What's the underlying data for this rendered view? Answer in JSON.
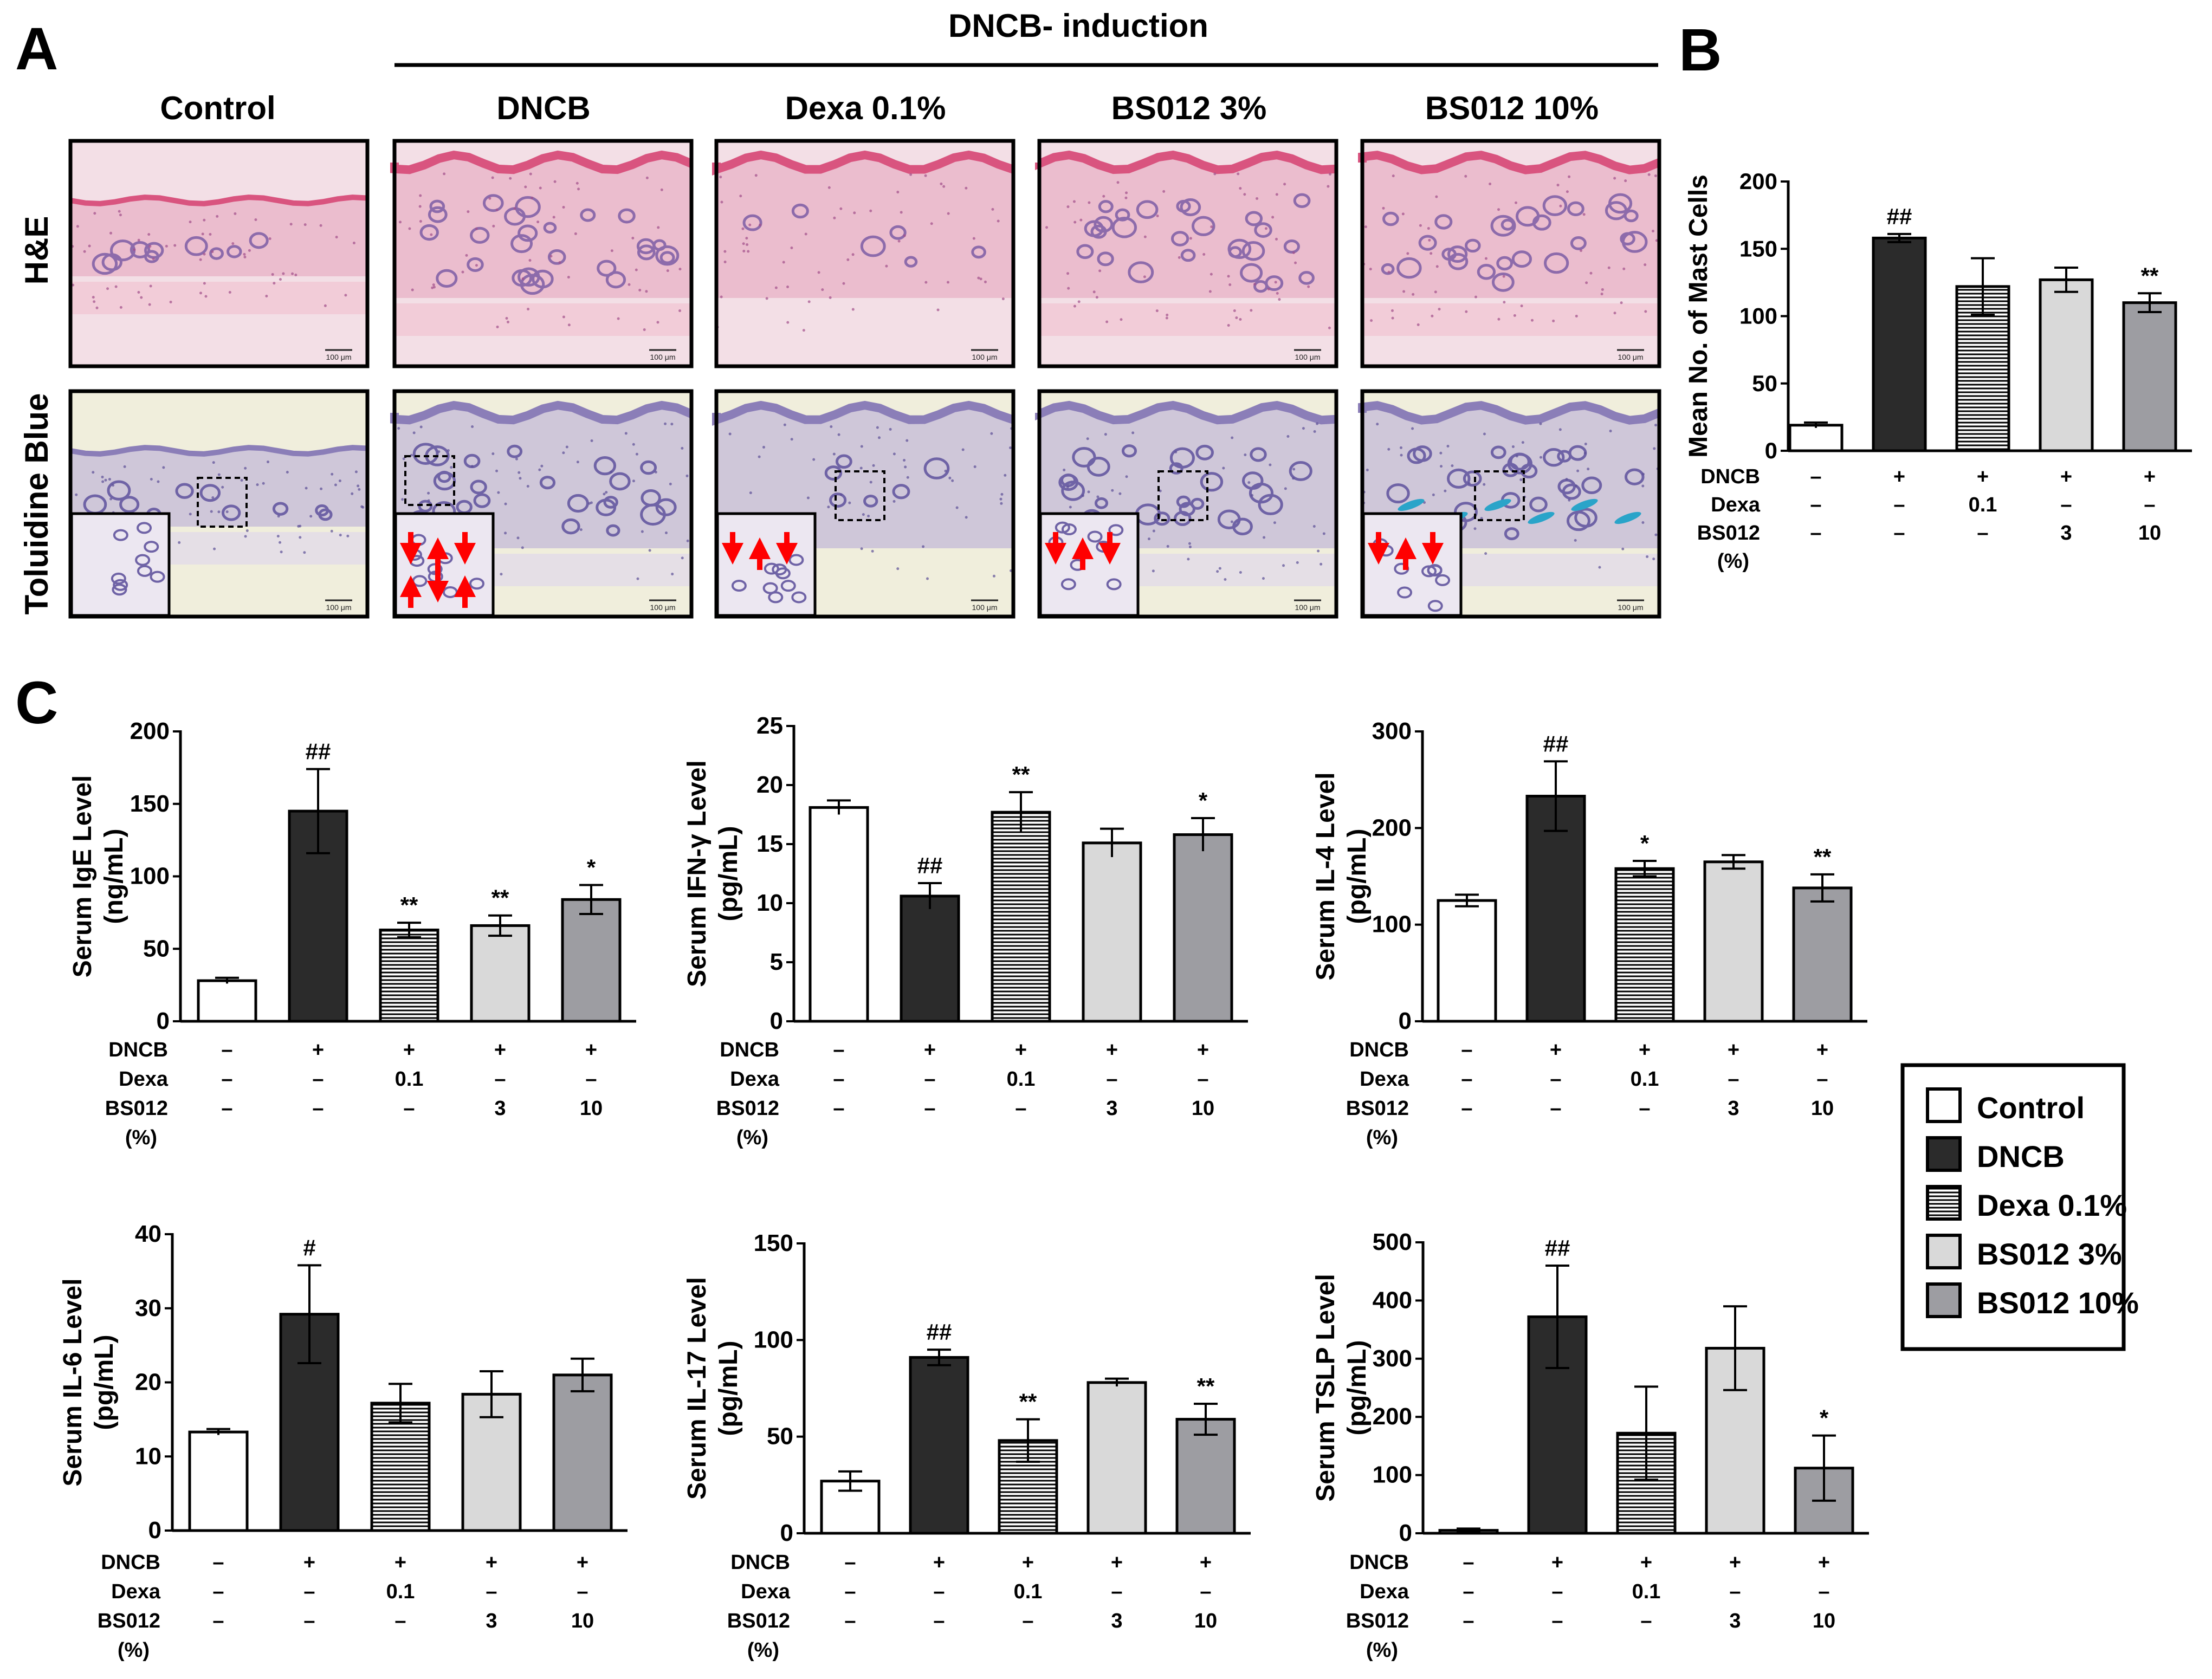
{
  "panel_letters": {
    "a": "A",
    "b": "B",
    "c": "C"
  },
  "panel_a": {
    "header": "DNCB- induction",
    "columns": [
      "Control",
      "DNCB",
      "Dexa 0.1%",
      "BS012 3%",
      "BS012 10%"
    ],
    "rows": [
      "H&E",
      "Toluidine Blue"
    ],
    "scale_bar": "100 μm"
  },
  "colors": {
    "control": "#ffffff",
    "dncb": "#2b2b2b",
    "dexa": "#ffffff",
    "bs3": "#d9d9d9",
    "bs10": "#9d9da2",
    "he_bg": "#f3dfe6",
    "he_tissue": "#e9b7c9",
    "he_epi": "#d9547f",
    "he_follicle": "#8d6bab",
    "tb_bg": "#f0eedc",
    "tb_tissue": "#c9bfd8",
    "tb_epi": "#8b7eb8",
    "tb_follicle": "#6f63a6",
    "mast_cell_arrow": "#ff0000",
    "mast_cell_stain": "#2aa4c9"
  },
  "legend": [
    {
      "key": "control",
      "label": "Control"
    },
    {
      "key": "dncb",
      "label": "DNCB"
    },
    {
      "key": "dexa",
      "label": "Dexa 0.1%"
    },
    {
      "key": "bs3",
      "label": "BS012 3%"
    },
    {
      "key": "bs10",
      "label": "BS012 10%"
    }
  ],
  "treatment_table": {
    "row_labels": [
      "DNCB",
      "Dexa",
      "BS012",
      "(%)"
    ],
    "dncb": [
      "–",
      "+",
      "+",
      "+",
      "+"
    ],
    "dexa": [
      "–",
      "–",
      "0.1",
      "–",
      "–"
    ],
    "bs012": [
      "–",
      "–",
      "–",
      "3",
      "10"
    ]
  },
  "chart_data": [
    {
      "id": "mast",
      "panel": "B",
      "type": "bar",
      "ylabel": "Mean No. of Mast Cells",
      "categories": [
        "Control",
        "DNCB",
        "Dexa 0.1%",
        "BS012 3%",
        "BS012 10%"
      ],
      "values": [
        19,
        158,
        122,
        127,
        110
      ],
      "errors": [
        2,
        3,
        21,
        9,
        7
      ],
      "annotations": [
        "",
        "##",
        "",
        "",
        "**"
      ],
      "ylim": [
        0,
        200
      ],
      "yticks": [
        0,
        50,
        100,
        150,
        200
      ]
    },
    {
      "id": "ige",
      "panel": "C",
      "type": "bar",
      "ylabel": "Serum IgE Level",
      "unit": "(ng/mL)",
      "categories": [
        "Control",
        "DNCB",
        "Dexa 0.1%",
        "BS012 3%",
        "BS012 10%"
      ],
      "values": [
        28,
        145,
        63,
        66,
        84
      ],
      "errors": [
        2,
        29,
        5,
        7,
        10
      ],
      "annotations": [
        "",
        "##",
        "**",
        "**",
        "*"
      ],
      "ylim": [
        0,
        200
      ],
      "yticks": [
        0,
        50,
        100,
        150,
        200
      ]
    },
    {
      "id": "ifn",
      "panel": "C",
      "type": "bar",
      "ylabel": "Serum IFN-γ Level",
      "unit": "(pg/mL)",
      "categories": [
        "Control",
        "DNCB",
        "Dexa 0.1%",
        "BS012 3%",
        "BS012 10%"
      ],
      "values": [
        18.1,
        10.6,
        17.7,
        15.1,
        15.8
      ],
      "errors": [
        0.6,
        1.1,
        1.7,
        1.2,
        1.4
      ],
      "annotations": [
        "",
        "##",
        "**",
        "",
        "*"
      ],
      "ylim": [
        0,
        25
      ],
      "yticks": [
        0,
        5,
        10,
        15,
        20,
        25
      ]
    },
    {
      "id": "il4",
      "panel": "C",
      "type": "bar",
      "ylabel": "Serum IL-4 Level",
      "unit": "(pg/mL)",
      "categories": [
        "Control",
        "DNCB",
        "Dexa 0.1%",
        "BS012 3%",
        "BS012 10%"
      ],
      "values": [
        125,
        233,
        158,
        165,
        138
      ],
      "errors": [
        6,
        36,
        8,
        7,
        14
      ],
      "annotations": [
        "",
        "##",
        "*",
        "",
        "**"
      ],
      "ylim": [
        0,
        300
      ],
      "yticks": [
        0,
        100,
        200,
        300
      ]
    },
    {
      "id": "il6",
      "panel": "C",
      "type": "bar",
      "ylabel": "Serum IL-6 Level",
      "unit": "(pg/mL)",
      "categories": [
        "Control",
        "DNCB",
        "Dexa 0.1%",
        "BS012 3%",
        "BS012 10%"
      ],
      "values": [
        13.3,
        29.2,
        17.2,
        18.4,
        21.0
      ],
      "errors": [
        0.4,
        6.6,
        2.6,
        3.1,
        2.2
      ],
      "annotations": [
        "",
        "#",
        "",
        "",
        ""
      ],
      "ylim": [
        0,
        40
      ],
      "yticks": [
        0,
        10,
        20,
        30,
        40
      ]
    },
    {
      "id": "il17",
      "panel": "C",
      "type": "bar",
      "ylabel": "Serum IL-17 Level",
      "unit": "(pg/mL)",
      "categories": [
        "Control",
        "DNCB",
        "Dexa 0.1%",
        "BS012 3%",
        "BS012 10%"
      ],
      "values": [
        27,
        91,
        48,
        78,
        59
      ],
      "errors": [
        5,
        4,
        11,
        2,
        8
      ],
      "annotations": [
        "",
        "##",
        "**",
        "",
        "**"
      ],
      "ylim": [
        0,
        150
      ],
      "yticks": [
        0,
        50,
        100,
        150
      ]
    },
    {
      "id": "tslp",
      "panel": "C",
      "type": "bar",
      "ylabel": "Serum TSLP Level",
      "unit": "(pg/mL)",
      "categories": [
        "Control",
        "DNCB",
        "Dexa 0.1%",
        "BS012 3%",
        "BS012 10%"
      ],
      "values": [
        5,
        372,
        172,
        318,
        112
      ],
      "errors": [
        3,
        88,
        80,
        72,
        56
      ],
      "annotations": [
        "",
        "##",
        "",
        "",
        "*"
      ],
      "ylim": [
        0,
        500
      ],
      "yticks": [
        0,
        100,
        200,
        300,
        400,
        500
      ]
    }
  ]
}
